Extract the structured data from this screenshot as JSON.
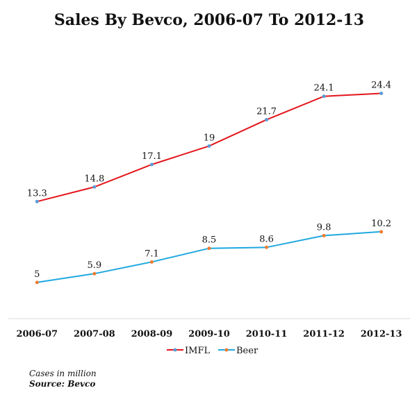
{
  "chart_data": {
    "type": "line",
    "title": "Sales By Bevco, 2006-07 To 2012-13",
    "categories": [
      "2006-07",
      "2007-08",
      "2008-09",
      "2009-10",
      "2010-11",
      "2011-12",
      "2012-13"
    ],
    "series": [
      {
        "name": "IMFL",
        "values": [
          13.3,
          14.8,
          17.1,
          19,
          21.7,
          24.1,
          24.4
        ],
        "color": "#e3151b",
        "marker_color": "#5b9bd5"
      },
      {
        "name": "Beer",
        "values": [
          5,
          5.9,
          7.1,
          8.5,
          8.6,
          9.8,
          10.2
        ],
        "color": "#1ea8e0",
        "marker_color": "#ed7d31"
      }
    ],
    "ylim": [
      0,
      28
    ],
    "grid": false,
    "legend_position": "bottom",
    "xlabel": "",
    "ylabel": ""
  },
  "footnote": {
    "units": "Cases in million",
    "source": "Source: Bevco"
  }
}
